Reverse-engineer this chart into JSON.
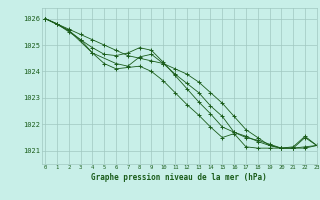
{
  "title": "Graphe pression niveau de la mer (hPa)",
  "bg_color": "#c8efe8",
  "grid_color": "#a0c8c0",
  "line_color": "#1a5c1a",
  "text_color": "#1a5c1a",
  "xlim": [
    -0.3,
    23
  ],
  "ylim": [
    1020.5,
    1026.4
  ],
  "yticks": [
    1021,
    1022,
    1023,
    1024,
    1025,
    1026
  ],
  "xticks": [
    0,
    1,
    2,
    3,
    4,
    5,
    6,
    7,
    8,
    9,
    10,
    11,
    12,
    13,
    14,
    15,
    16,
    17,
    18,
    19,
    20,
    21,
    22,
    23
  ],
  "lines": [
    {
      "x": [
        0,
        1,
        2,
        3,
        4,
        5,
        6,
        7,
        8,
        9,
        10,
        11,
        12,
        13,
        14,
        15,
        16,
        17,
        18,
        19,
        20,
        21,
        22,
        23
      ],
      "y": [
        1026.0,
        1025.8,
        1025.6,
        1025.4,
        1025.2,
        1025.0,
        1024.8,
        1024.6,
        1024.5,
        1024.4,
        1024.3,
        1024.1,
        1023.9,
        1023.6,
        1023.2,
        1022.8,
        1022.3,
        1021.8,
        1021.5,
        1021.2,
        1021.1,
        1021.1,
        1021.15,
        1021.2
      ]
    },
    {
      "x": [
        0,
        1,
        2,
        3,
        4,
        5,
        6,
        7,
        8,
        9,
        10,
        11,
        12,
        13,
        14,
        15,
        16,
        17,
        18,
        19,
        20,
        21,
        22,
        23
      ],
      "y": [
        1026.0,
        1025.8,
        1025.5,
        1025.2,
        1024.9,
        1024.65,
        1024.6,
        1024.7,
        1024.9,
        1024.8,
        1024.35,
        1023.85,
        1023.35,
        1022.85,
        1022.4,
        1021.9,
        1021.7,
        1021.55,
        1021.35,
        1021.2,
        1021.1,
        1021.1,
        1021.5,
        1021.2
      ]
    },
    {
      "x": [
        0,
        2,
        4,
        6,
        7,
        8,
        9,
        10,
        11,
        12,
        13,
        14,
        15,
        16,
        17,
        18,
        19,
        20,
        21,
        22,
        23
      ],
      "y": [
        1026.0,
        1025.55,
        1024.7,
        1024.3,
        1024.2,
        1024.55,
        1024.65,
        1024.3,
        1023.9,
        1023.55,
        1023.2,
        1022.7,
        1022.3,
        1021.7,
        1021.5,
        1021.4,
        1021.25,
        1021.1,
        1021.15,
        1021.55,
        1021.2
      ]
    },
    {
      "x": [
        0,
        1,
        2,
        3,
        4,
        5,
        6,
        7,
        8,
        9,
        10,
        11,
        12,
        13,
        14,
        15,
        16,
        17,
        18,
        19,
        20,
        21,
        22,
        23
      ],
      "y": [
        1026.0,
        1025.8,
        1025.55,
        1025.2,
        1024.7,
        1024.3,
        1024.1,
        1024.15,
        1024.2,
        1024.0,
        1023.65,
        1023.2,
        1022.75,
        1022.35,
        1021.9,
        1021.5,
        1021.65,
        1021.15,
        1021.1,
        1021.1,
        1021.1,
        1021.1,
        1021.1,
        1021.2
      ]
    }
  ]
}
